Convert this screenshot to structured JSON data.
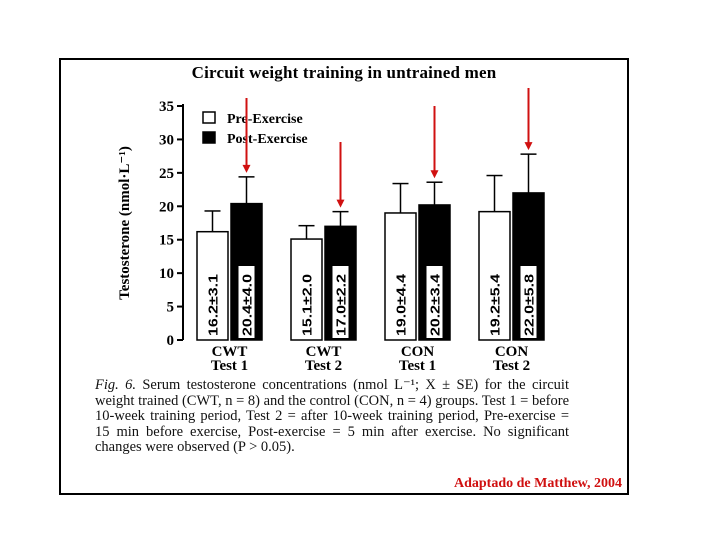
{
  "chart_data": {
    "type": "bar",
    "title": "Circuit weight training in untrained men",
    "xlabel": "",
    "ylabel": "Testosterone (nmol·L⁻¹)",
    "ylim": [
      0,
      35
    ],
    "yticks": [
      0,
      5,
      10,
      15,
      20,
      25,
      30,
      35
    ],
    "grid": false,
    "legend_position": "top-left",
    "categories": [
      [
        "CWT",
        "Test 1"
      ],
      [
        "CWT",
        "Test 2"
      ],
      [
        "CON",
        "Test 1"
      ],
      [
        "CON",
        "Test 2"
      ]
    ],
    "series": [
      {
        "name": "Pre-Exercise",
        "color": "#ffffff",
        "values": [
          16.2,
          15.1,
          19.0,
          19.2
        ],
        "errors": [
          3.1,
          2.0,
          4.4,
          5.4
        ],
        "labels": [
          "16.2±3.1",
          "15.1±2.0",
          "19.0±4.4",
          "19.2±5.4"
        ]
      },
      {
        "name": "Post-Exercise",
        "color": "#000000",
        "values": [
          20.4,
          17.0,
          20.2,
          22.0
        ],
        "errors": [
          4.0,
          2.2,
          3.4,
          5.8
        ],
        "labels": [
          "20.4±4.0",
          "17.0±2.2",
          "20.2±3.4",
          "22.0±5.8"
        ]
      }
    ],
    "annotation_arrows": {
      "color": "#d01010",
      "targets": [
        {
          "category": 0,
          "series": 1
        },
        {
          "category": 1,
          "series": 1
        },
        {
          "category": 2,
          "series": 1
        },
        {
          "category": 3,
          "series": 1
        }
      ]
    }
  },
  "caption": {
    "fig_label": "Fig. 6.",
    "text": " Serum testosterone concentrations (nmol L⁻¹; X ± SE) for the circuit weight trained (CWT, n = 8) and the control (CON, n = 4) groups. Test 1 = before 10-week training period, Test 2 = after 10-week training period, Pre-exercise = 15 min before exercise, Post-exercise = 5 min after exercise. No significant changes were observed (P > 0.05)."
  },
  "credit": "Adaptado de Matthew, 2004"
}
